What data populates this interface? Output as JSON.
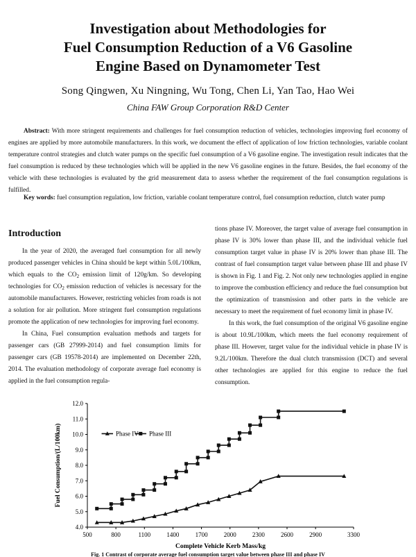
{
  "paper": {
    "title_line1": "Investigation about Methodologies for",
    "title_line2": "Fuel Consumption Reduction of a V6 Gasoline",
    "title_line3": "Engine Based on Dynamometer Test",
    "authors": "Song Qingwen, Xu Ningning, Wu Tong, Chen Li, Yan Tao, Hao Wei",
    "affiliation": "China FAW Group Corporation R&D Center",
    "abstract_label": "Abstract:",
    "abstract_text": "With more stringent requirements and challenges for fuel consumption reduction of vehicles, technologies improving fuel economy of engines are applied by more automobile manufacturers. In this work, we document the effect of application of low friction technologies, variable coolant temperature control strategies and clutch water pumps on the specific fuel consumption of a V6 gasoline engine. The investigation result indicates that the fuel consumption is reduced by these technologies which will be applied in the new V6 gasoline engines in the future. Besides, the fuel economy of the vehicle with these technologies is evaluated by the grid measurement data to assess whether the requirement of the fuel consumption regulations is fulfilled.",
    "keywords_label": "Key words:",
    "keywords_text": "fuel consumption regulation, low friction, variable coolant temperature control, fuel consumption reduction, clutch water pump",
    "section_heading": "Introduction",
    "left_p1_a": "In the year of 2020, the averaged fuel consumption for all newly produced passenger vehicles in China should be kept within 5.0L/100km, which equals to the CO",
    "left_p1_b": " emission limit of 120g/km. So developing technologies for CO",
    "left_p1_c": " emission reduction of vehicles is necessary for the automobile manufacturers. However, restricting vehicles from roads is not a solution for air pollution. More stringent fuel consumption regulations promote the application of new technologies for improving fuel economy.",
    "sub_2": "2",
    "left_p2": "In China, Fuel consumption evaluation methods and targets for passenger cars (GB 27999-2014) and fuel consumption limits for passenger cars (GB 19578-2014) are implemented on December 22th, 2014. The evaluation methodology of corporate average fuel economy is applied in the fuel consumption regula-",
    "right_p1": "tions phase IV. Moreover, the target value of average fuel consumption in phase IV is 30% lower than phase III, and the individual vehicle fuel consumption target value in phase IV is 20% lower than phase III. The contrast of fuel consumption target value between phase III and phase IV is shown in Fig. 1 and Fig. 2. Not only new technologies applied in engine to improve the combustion efficiency and reduce the fuel consumption but the optimization of transmission and other parts in the vehicle are necessary to meet the requirement of fuel economy limit in phase IV.",
    "right_p2": "In this work, the fuel consumption of the original V6 gasoline engine is about 10.9L/100km, which meets the fuel economy requirement of phase III. However, target value for the individual vehicle in phase IV is 9.2L/100km. Therefore the dual clutch transmission (DCT) and several other technologies are applied for this engine to reduce the fuel consumption.",
    "figure_caption": "Fig. 1  Contrast of corporate average fuel consumption target value between phase III and phase IV"
  },
  "colors": {
    "text": "#111111",
    "series": "#111111"
  },
  "chart_data": {
    "type": "line",
    "xlabel": "Complete Vehicle Kerb Mass/kg",
    "ylabel": "Fuel Consumption/(L/100km)",
    "xlim": [
      500,
      3300
    ],
    "ylim": [
      4.0,
      12.0
    ],
    "xticks": [
      500,
      800,
      1100,
      1400,
      1700,
      2000,
      2300,
      2600,
      2900,
      3300
    ],
    "yticks": [
      "4.0",
      "5.0",
      "6.0",
      "7.0",
      "8.0",
      "9.0",
      "10.0",
      "11.0",
      "12.0"
    ],
    "grid": false,
    "legend_position": "top-left",
    "series": [
      {
        "name": "Phase IV",
        "marker": "triangle",
        "x": [
          600,
          750,
          750,
          865,
          865,
          980,
          980,
          1090,
          1090,
          1205,
          1205,
          1320,
          1320,
          1435,
          1435,
          1540,
          1540,
          1660,
          1660,
          1770,
          1770,
          1880,
          1880,
          1990,
          1990,
          2100,
          2100,
          2210,
          2210,
          2320,
          2320,
          2510,
          2510,
          3200
        ],
        "y": [
          4.3,
          4.3,
          4.3,
          4.3,
          4.3,
          4.4,
          4.4,
          4.55,
          4.55,
          4.7,
          4.7,
          4.85,
          4.85,
          5.05,
          5.05,
          5.2,
          5.2,
          5.45,
          5.45,
          5.6,
          5.6,
          5.8,
          5.8,
          6.0,
          6.0,
          6.2,
          6.2,
          6.4,
          6.4,
          6.95,
          6.95,
          7.3,
          7.3,
          7.3
        ]
      },
      {
        "name": "Phase III",
        "marker": "square",
        "x": [
          600,
          750,
          750,
          865,
          865,
          980,
          980,
          1090,
          1090,
          1205,
          1205,
          1320,
          1320,
          1435,
          1435,
          1540,
          1540,
          1660,
          1660,
          1770,
          1770,
          1880,
          1880,
          1990,
          1990,
          2100,
          2100,
          2210,
          2210,
          2320,
          2320,
          2510,
          2510,
          3200
        ],
        "y": [
          5.2,
          5.2,
          5.5,
          5.5,
          5.8,
          5.8,
          6.1,
          6.1,
          6.4,
          6.4,
          6.8,
          6.8,
          7.2,
          7.2,
          7.6,
          7.6,
          8.1,
          8.1,
          8.5,
          8.5,
          8.9,
          8.9,
          9.3,
          9.3,
          9.7,
          9.7,
          10.1,
          10.1,
          10.6,
          10.6,
          11.1,
          11.1,
          11.5,
          11.5
        ]
      }
    ]
  }
}
